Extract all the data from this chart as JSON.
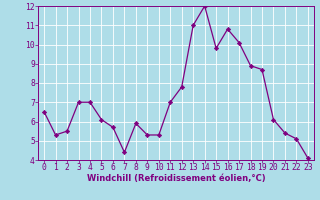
{
  "x": [
    0,
    1,
    2,
    3,
    4,
    5,
    6,
    7,
    8,
    9,
    10,
    11,
    12,
    13,
    14,
    15,
    16,
    17,
    18,
    19,
    20,
    21,
    22,
    23
  ],
  "y": [
    6.5,
    5.3,
    5.5,
    7.0,
    7.0,
    6.1,
    5.7,
    4.4,
    5.9,
    5.3,
    5.3,
    7.0,
    7.8,
    11.0,
    12.0,
    9.8,
    10.8,
    10.1,
    8.9,
    8.7,
    6.1,
    5.4,
    5.1,
    4.1
  ],
  "line_color": "#800080",
  "marker": "D",
  "marker_size": 2.2,
  "xlabel": "Windchill (Refroidissement éolien,°C)",
  "xlim": [
    -0.5,
    23.5
  ],
  "ylim": [
    4,
    12
  ],
  "yticks": [
    4,
    5,
    6,
    7,
    8,
    9,
    10,
    11,
    12
  ],
  "xticks": [
    0,
    1,
    2,
    3,
    4,
    5,
    6,
    7,
    8,
    9,
    10,
    11,
    12,
    13,
    14,
    15,
    16,
    17,
    18,
    19,
    20,
    21,
    22,
    23
  ],
  "bg_color": "#aedde8",
  "grid_color": "#d0eef5",
  "spine_color": "#800080",
  "tick_color": "#800080",
  "label_color": "#800080",
  "font_size_xlabel": 6.0,
  "font_size_tick": 5.8,
  "linewidth": 0.9
}
